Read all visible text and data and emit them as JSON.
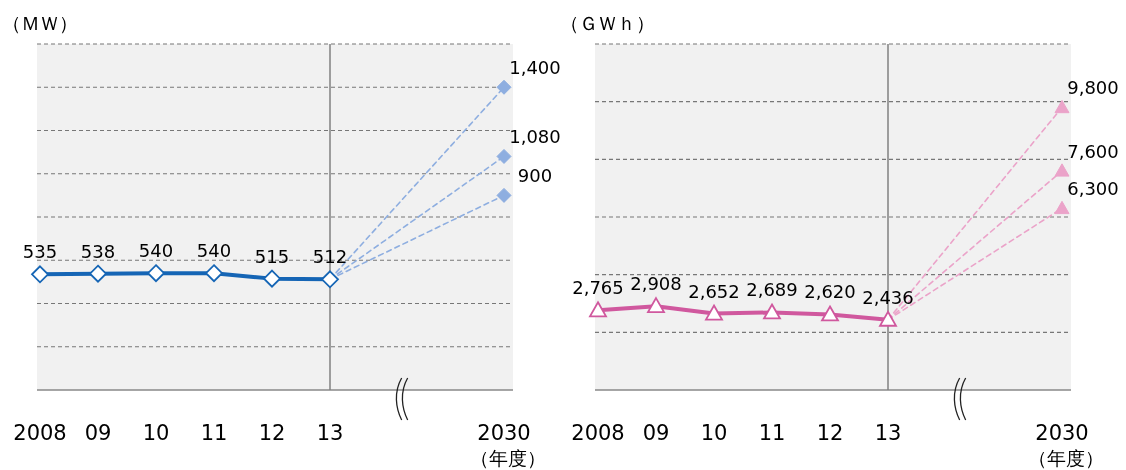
{
  "chart_data": [
    {
      "type": "line",
      "ylabel": "（ＭＷ）",
      "xlabel": "（年度）",
      "categories": [
        "2008",
        "09",
        "10",
        "11",
        "12",
        "13",
        null,
        null,
        "2030"
      ],
      "ylim": [
        0,
        1600
      ],
      "yticks": [
        {
          "value": 200,
          "label": null
        },
        {
          "value": 400,
          "label": null
        },
        {
          "value": 600,
          "label": null
        },
        {
          "value": 800,
          "label": null
        },
        {
          "value": 1000,
          "label": null
        },
        {
          "value": 1200,
          "label": null
        },
        {
          "value": 1400,
          "label": null
        },
        {
          "value": 1600,
          "label": null
        }
      ],
      "tick_labels": "x",
      "grid": "y",
      "ref_lines": [
        {
          "axis": "x",
          "value": "13",
          "color": "#808080"
        }
      ],
      "series": [
        {
          "color": "#8eaee0",
          "line_style": "dashed",
          "marker": "diamond",
          "values": [
            null,
            null,
            null,
            null,
            null,
            512,
            null,
            null,
            1400
          ],
          "value_labels": [
            null,
            null,
            null,
            null,
            null,
            null,
            null,
            null,
            "1,400"
          ]
        },
        {
          "color": "#8eaee0",
          "line_style": "dashed",
          "marker": "diamond",
          "values": [
            null,
            null,
            null,
            null,
            null,
            512,
            null,
            null,
            1080
          ],
          "value_labels": [
            null,
            null,
            null,
            null,
            null,
            null,
            null,
            null,
            "1,080"
          ]
        },
        {
          "color": "#8eaee0",
          "line_style": "dashed",
          "marker": "diamond",
          "values": [
            null,
            null,
            null,
            null,
            null,
            512,
            null,
            null,
            900
          ],
          "value_labels": [
            null,
            null,
            null,
            null,
            null,
            null,
            null,
            null,
            "900"
          ]
        },
        {
          "color": "#1565b5",
          "line_style": "solid",
          "marker": "diamond",
          "values": [
            535,
            538,
            540,
            540,
            515,
            512,
            null,
            null,
            null
          ],
          "value_labels": [
            "535",
            "538",
            "540",
            "540",
            "515",
            "512",
            null,
            null,
            null
          ]
        }
      ]
    },
    {
      "type": "line",
      "ylabel": "（ＧＷｈ）",
      "xlabel": "（年度）",
      "categories": [
        "2008",
        "09",
        "10",
        "11",
        "12",
        "13",
        null,
        null,
        "2030"
      ],
      "ylim": [
        0,
        12000
      ],
      "yticks": [
        {
          "value": 2000,
          "label": null
        },
        {
          "value": 4000,
          "label": null
        },
        {
          "value": 6000,
          "label": null
        },
        {
          "value": 8000,
          "label": null
        },
        {
          "value": 10000,
          "label": null
        },
        {
          "value": 12000,
          "label": null
        }
      ],
      "tick_labels": "x",
      "grid": "y",
      "ref_lines": [
        {
          "axis": "x",
          "value": "13",
          "color": "#808080"
        }
      ],
      "series": [
        {
          "color": "#eba3c9",
          "line_style": "dashed",
          "marker": "triangle",
          "values": [
            null,
            null,
            null,
            null,
            null,
            2436,
            null,
            null,
            9800
          ],
          "value_labels": [
            null,
            null,
            null,
            null,
            null,
            null,
            null,
            null,
            "9,800"
          ]
        },
        {
          "color": "#eba3c9",
          "line_style": "dashed",
          "marker": "triangle",
          "values": [
            null,
            null,
            null,
            null,
            null,
            2436,
            null,
            null,
            7600
          ],
          "value_labels": [
            null,
            null,
            null,
            null,
            null,
            null,
            null,
            null,
            "7,600"
          ]
        },
        {
          "color": "#eba3c9",
          "line_style": "dashed",
          "marker": "triangle",
          "values": [
            null,
            null,
            null,
            null,
            null,
            2436,
            null,
            null,
            6300
          ],
          "value_labels": [
            null,
            null,
            null,
            null,
            null,
            null,
            null,
            null,
            "6,300"
          ]
        },
        {
          "color": "#d0589e",
          "line_style": "solid",
          "marker": "triangle",
          "values": [
            2765,
            2908,
            2652,
            2689,
            2620,
            2436,
            null,
            null,
            null
          ],
          "value_labels": [
            "2,765",
            "2,908",
            "2,652",
            "2,689",
            "2,620",
            "2,436",
            null,
            null,
            null
          ]
        }
      ]
    }
  ]
}
